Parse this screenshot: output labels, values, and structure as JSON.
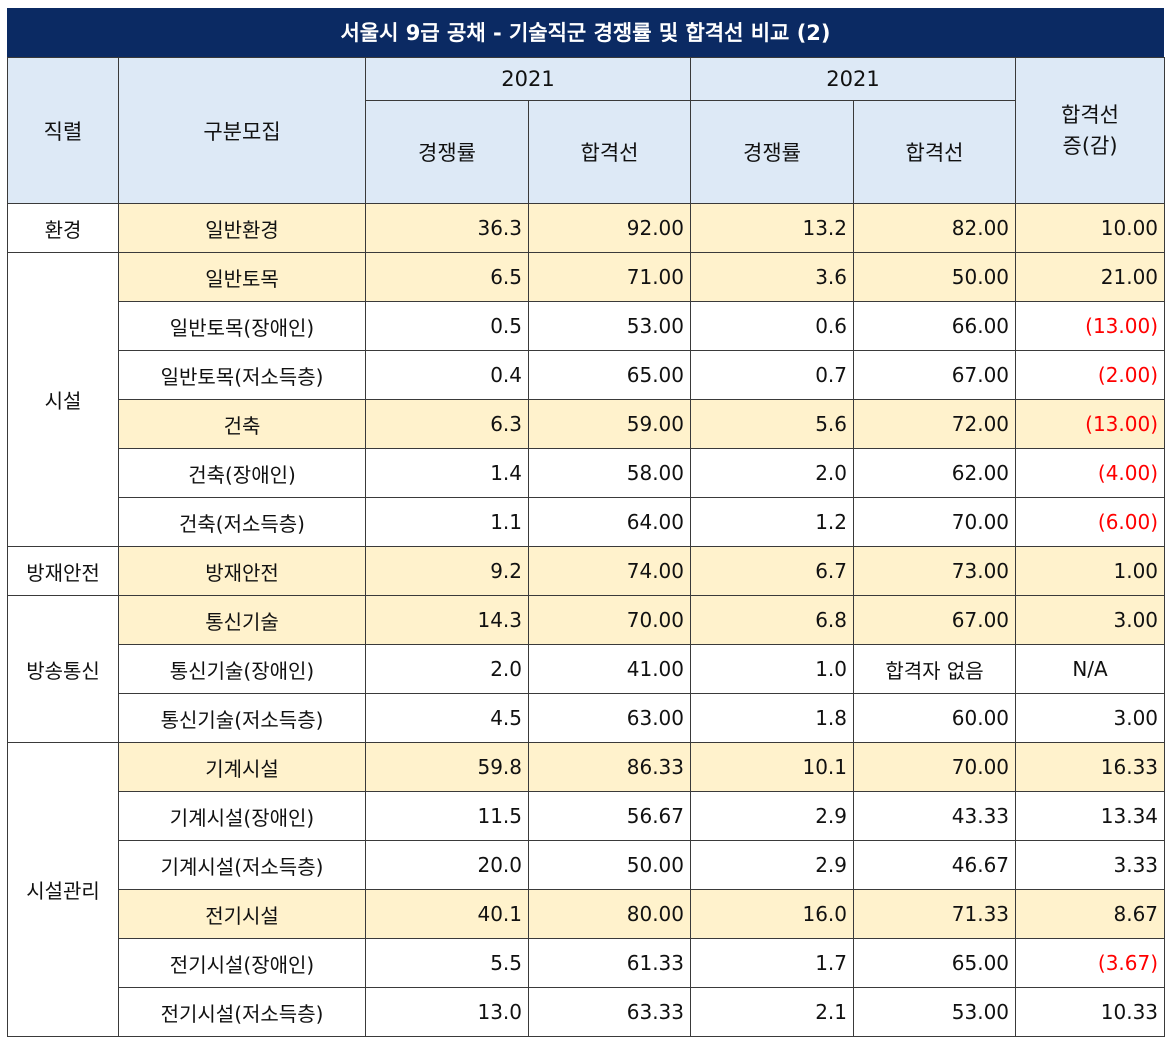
{
  "title": "서울시 9급 공채 - 기술직군 경쟁률 및 합격선 비교 (2)",
  "headers": {
    "series": "직렬",
    "category": "구분모집",
    "year_a": "2021",
    "year_b": "2021",
    "rate_a": "경쟁률",
    "cut_a": "합격선",
    "rate_b": "경쟁률",
    "cut_b": "합격선",
    "diff_line1": "합격선",
    "diff_line2": "증(감)"
  },
  "groups": [
    {
      "name": "환경",
      "rows": [
        {
          "category": "일반환경",
          "rate_a": "36.3",
          "cut_a": "92.00",
          "rate_b": "13.2",
          "cut_b": "82.00",
          "diff": "10.00",
          "highlight": true,
          "negative": false
        }
      ]
    },
    {
      "name": "시설",
      "rows": [
        {
          "category": "일반토목",
          "rate_a": "6.5",
          "cut_a": "71.00",
          "rate_b": "3.6",
          "cut_b": "50.00",
          "diff": "21.00",
          "highlight": true,
          "negative": false
        },
        {
          "category": "일반토목(장애인)",
          "rate_a": "0.5",
          "cut_a": "53.00",
          "rate_b": "0.6",
          "cut_b": "66.00",
          "diff": "(13.00)",
          "highlight": false,
          "negative": true
        },
        {
          "category": "일반토목(저소득층)",
          "rate_a": "0.4",
          "cut_a": "65.00",
          "rate_b": "0.7",
          "cut_b": "67.00",
          "diff": "(2.00)",
          "highlight": false,
          "negative": true
        },
        {
          "category": "건축",
          "rate_a": "6.3",
          "cut_a": "59.00",
          "rate_b": "5.6",
          "cut_b": "72.00",
          "diff": "(13.00)",
          "highlight": true,
          "negative": true
        },
        {
          "category": "건축(장애인)",
          "rate_a": "1.4",
          "cut_a": "58.00",
          "rate_b": "2.0",
          "cut_b": "62.00",
          "diff": "(4.00)",
          "highlight": false,
          "negative": true
        },
        {
          "category": "건축(저소득층)",
          "rate_a": "1.1",
          "cut_a": "64.00",
          "rate_b": "1.2",
          "cut_b": "70.00",
          "diff": "(6.00)",
          "highlight": false,
          "negative": true
        }
      ]
    },
    {
      "name": "방재안전",
      "rows": [
        {
          "category": "방재안전",
          "rate_a": "9.2",
          "cut_a": "74.00",
          "rate_b": "6.7",
          "cut_b": "73.00",
          "diff": "1.00",
          "highlight": true,
          "negative": false
        }
      ]
    },
    {
      "name": "방송통신",
      "rows": [
        {
          "category": "통신기술",
          "rate_a": "14.3",
          "cut_a": "70.00",
          "rate_b": "6.8",
          "cut_b": "67.00",
          "diff": "3.00",
          "highlight": true,
          "negative": false
        },
        {
          "category": "통신기술(장애인)",
          "rate_a": "2.0",
          "cut_a": "41.00",
          "rate_b": "1.0",
          "cut_b": "합격자 없음",
          "diff": "N/A",
          "highlight": false,
          "negative": false,
          "centered": true
        },
        {
          "category": "통신기술(저소득층)",
          "rate_a": "4.5",
          "cut_a": "63.00",
          "rate_b": "1.8",
          "cut_b": "60.00",
          "diff": "3.00",
          "highlight": false,
          "negative": false
        }
      ]
    },
    {
      "name": "시설관리",
      "rows": [
        {
          "category": "기계시설",
          "rate_a": "59.8",
          "cut_a": "86.33",
          "rate_b": "10.1",
          "cut_b": "70.00",
          "diff": "16.33",
          "highlight": true,
          "negative": false
        },
        {
          "category": "기계시설(장애인)",
          "rate_a": "11.5",
          "cut_a": "56.67",
          "rate_b": "2.9",
          "cut_b": "43.33",
          "diff": "13.34",
          "highlight": false,
          "negative": false
        },
        {
          "category": "기계시설(저소득층)",
          "rate_a": "20.0",
          "cut_a": "50.00",
          "rate_b": "2.9",
          "cut_b": "46.67",
          "diff": "3.33",
          "highlight": false,
          "negative": false
        },
        {
          "category": "전기시설",
          "rate_a": "40.1",
          "cut_a": "80.00",
          "rate_b": "16.0",
          "cut_b": "71.33",
          "diff": "8.67",
          "highlight": true,
          "negative": false
        },
        {
          "category": "전기시설(장애인)",
          "rate_a": "5.5",
          "cut_a": "61.33",
          "rate_b": "1.7",
          "cut_b": "65.00",
          "diff": "(3.67)",
          "highlight": false,
          "negative": true
        },
        {
          "category": "전기시설(저소득층)",
          "rate_a": "13.0",
          "cut_a": "63.33",
          "rate_b": "2.1",
          "cut_b": "53.00",
          "diff": "10.33",
          "highlight": false,
          "negative": false
        }
      ]
    }
  ]
}
